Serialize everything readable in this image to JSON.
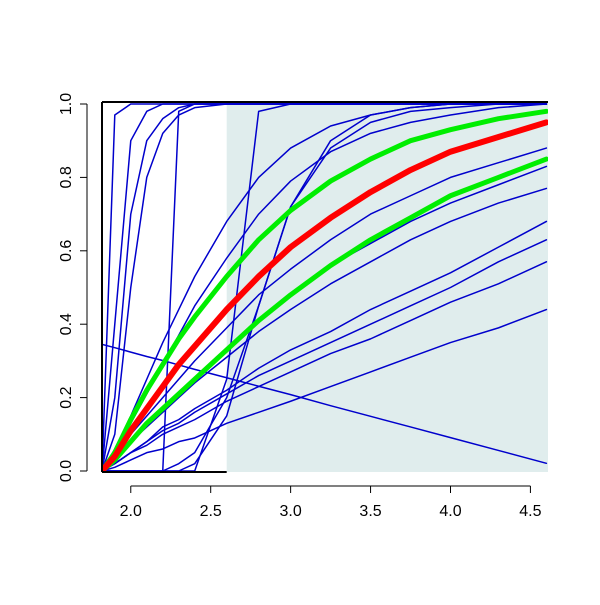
{
  "chart_data": {
    "type": "line",
    "x": [
      1.82,
      1.9,
      2.0,
      2.1,
      2.2,
      2.3,
      2.4,
      2.6,
      2.8,
      3.0,
      3.25,
      3.5,
      3.75,
      4.0,
      4.3,
      4.6
    ],
    "xlim": [
      1.82,
      4.61
    ],
    "ylim": [
      0,
      1
    ],
    "xticks": [
      {
        "value": 2,
        "label": "2.0"
      },
      {
        "value": 2.5,
        "label": "2.5"
      },
      {
        "value": 3,
        "label": "3.0"
      },
      {
        "value": 3.5,
        "label": "3.5"
      },
      {
        "value": 4,
        "label": "4.0"
      },
      {
        "value": 4.5,
        "label": "4.5"
      }
    ],
    "yticks": [
      {
        "value": 0,
        "label": "0.0"
      },
      {
        "value": 0.2,
        "label": "0.2"
      },
      {
        "value": 0.4,
        "label": "0.4"
      },
      {
        "value": 0.6,
        "label": "0.6"
      },
      {
        "value": 0.8,
        "label": "0.8"
      },
      {
        "value": 1,
        "label": "1.0"
      }
    ],
    "shade": {
      "x": [
        2.6,
        4.61
      ],
      "color": "#e0eded"
    },
    "series": [
      {
        "color": "#0000cc",
        "width": 1.5,
        "values": [
          0,
          0.97,
          1,
          1,
          1,
          1,
          1,
          1,
          1,
          1,
          1,
          1,
          1,
          1,
          1,
          1
        ]
      },
      {
        "color": "#0000cc",
        "width": 1.5,
        "values": [
          0,
          0.4,
          0.9,
          0.98,
          1,
          1,
          1,
          1,
          1,
          1,
          1,
          1,
          1,
          1,
          1,
          1
        ]
      },
      {
        "color": "#0000cc",
        "width": 1.5,
        "values": [
          0,
          0.2,
          0.7,
          0.9,
          0.96,
          0.99,
          1,
          1,
          1,
          1,
          1,
          1,
          1,
          1,
          1,
          1
        ]
      },
      {
        "color": "#0000cc",
        "width": 1.5,
        "values": [
          0,
          0.1,
          0.5,
          0.8,
          0.92,
          0.97,
          0.99,
          1,
          1,
          1,
          1,
          1,
          1,
          1,
          1,
          1
        ]
      },
      {
        "color": "#0000cc",
        "width": 1.5,
        "values": [
          0,
          0,
          0,
          0,
          0,
          0.98,
          1,
          1,
          1,
          1,
          1,
          1,
          1,
          1,
          1,
          1
        ]
      },
      {
        "color": "#0000cc",
        "width": 1.5,
        "values": [
          0,
          0,
          0,
          0,
          0,
          0,
          0,
          0.25,
          0.98,
          1,
          1,
          1,
          1,
          1,
          1,
          1
        ]
      },
      {
        "color": "#0000cc",
        "width": 1.5,
        "values": [
          0,
          0,
          0,
          0,
          0,
          0,
          0.02,
          0.15,
          0.45,
          0.72,
          0.88,
          0.95,
          0.98,
          0.99,
          1,
          1
        ]
      },
      {
        "color": "#0000cc",
        "width": 1.5,
        "values": [
          0,
          0,
          0,
          0,
          0,
          0.02,
          0.05,
          0.2,
          0.45,
          0.72,
          0.9,
          0.97,
          0.99,
          1,
          1,
          1
        ]
      },
      {
        "color": "#0000cc",
        "width": 1.5,
        "values": [
          0,
          0.06,
          0.15,
          0.25,
          0.35,
          0.44,
          0.53,
          0.68,
          0.8,
          0.88,
          0.94,
          0.97,
          0.99,
          1,
          1,
          1
        ]
      },
      {
        "color": "#0000cc",
        "width": 1.5,
        "values": [
          0,
          0.05,
          0.13,
          0.21,
          0.29,
          0.37,
          0.45,
          0.58,
          0.7,
          0.79,
          0.87,
          0.92,
          0.95,
          0.97,
          0.99,
          1
        ]
      },
      {
        "color": "#0000cc",
        "width": 1.5,
        "values": [
          0.345,
          0.336,
          0.324,
          0.312,
          0.301,
          0.289,
          0.277,
          0.254,
          0.231,
          0.208,
          0.178,
          0.149,
          0.12,
          0.091,
          0.056,
          0.021
        ]
      },
      {
        "color": "#0000cc",
        "width": 1.5,
        "values": [
          0,
          0.01,
          0.03,
          0.05,
          0.06,
          0.08,
          0.09,
          0.13,
          0.16,
          0.19,
          0.23,
          0.27,
          0.31,
          0.35,
          0.39,
          0.44
        ]
      },
      {
        "color": "#0000cc",
        "width": 1.5,
        "values": [
          0,
          0.02,
          0.05,
          0.07,
          0.1,
          0.12,
          0.14,
          0.19,
          0.23,
          0.27,
          0.32,
          0.36,
          0.41,
          0.46,
          0.51,
          0.57
        ]
      },
      {
        "color": "#0000cc",
        "width": 1.5,
        "values": [
          0,
          0.02,
          0.05,
          0.08,
          0.11,
          0.13,
          0.16,
          0.21,
          0.26,
          0.3,
          0.35,
          0.4,
          0.45,
          0.5,
          0.57,
          0.63
        ]
      },
      {
        "color": "#0000cc",
        "width": 1.5,
        "values": [
          0,
          0.02,
          0.05,
          0.08,
          0.12,
          0.14,
          0.17,
          0.22,
          0.28,
          0.33,
          0.38,
          0.44,
          0.49,
          0.54,
          0.61,
          0.68
        ]
      },
      {
        "color": "#0000cc",
        "width": 1.5,
        "values": [
          0,
          0.03,
          0.08,
          0.12,
          0.16,
          0.2,
          0.24,
          0.31,
          0.38,
          0.44,
          0.51,
          0.57,
          0.63,
          0.68,
          0.73,
          0.77
        ]
      },
      {
        "color": "#0000cc",
        "width": 1.5,
        "values": [
          0,
          0.03,
          0.08,
          0.13,
          0.17,
          0.21,
          0.25,
          0.33,
          0.41,
          0.48,
          0.56,
          0.62,
          0.68,
          0.73,
          0.78,
          0.83
        ]
      },
      {
        "color": "#0000cc",
        "width": 1.5,
        "values": [
          0,
          0.04,
          0.1,
          0.15,
          0.2,
          0.25,
          0.3,
          0.39,
          0.48,
          0.55,
          0.63,
          0.7,
          0.75,
          0.8,
          0.84,
          0.88
        ]
      },
      {
        "color": "#00ee00",
        "width": 5,
        "values": [
          0,
          0.05,
          0.14,
          0.22,
          0.29,
          0.36,
          0.42,
          0.53,
          0.63,
          0.71,
          0.79,
          0.85,
          0.9,
          0.93,
          0.96,
          0.98
        ]
      },
      {
        "color": "#00ee00",
        "width": 5,
        "values": [
          0,
          0.03,
          0.08,
          0.13,
          0.17,
          0.21,
          0.25,
          0.33,
          0.41,
          0.48,
          0.56,
          0.63,
          0.69,
          0.75,
          0.8,
          0.85
        ]
      },
      {
        "color": "#ff0000",
        "width": 6,
        "values": [
          0,
          0.04,
          0.11,
          0.17,
          0.23,
          0.29,
          0.34,
          0.44,
          0.53,
          0.61,
          0.69,
          0.76,
          0.82,
          0.87,
          0.91,
          0.95
        ]
      }
    ]
  }
}
